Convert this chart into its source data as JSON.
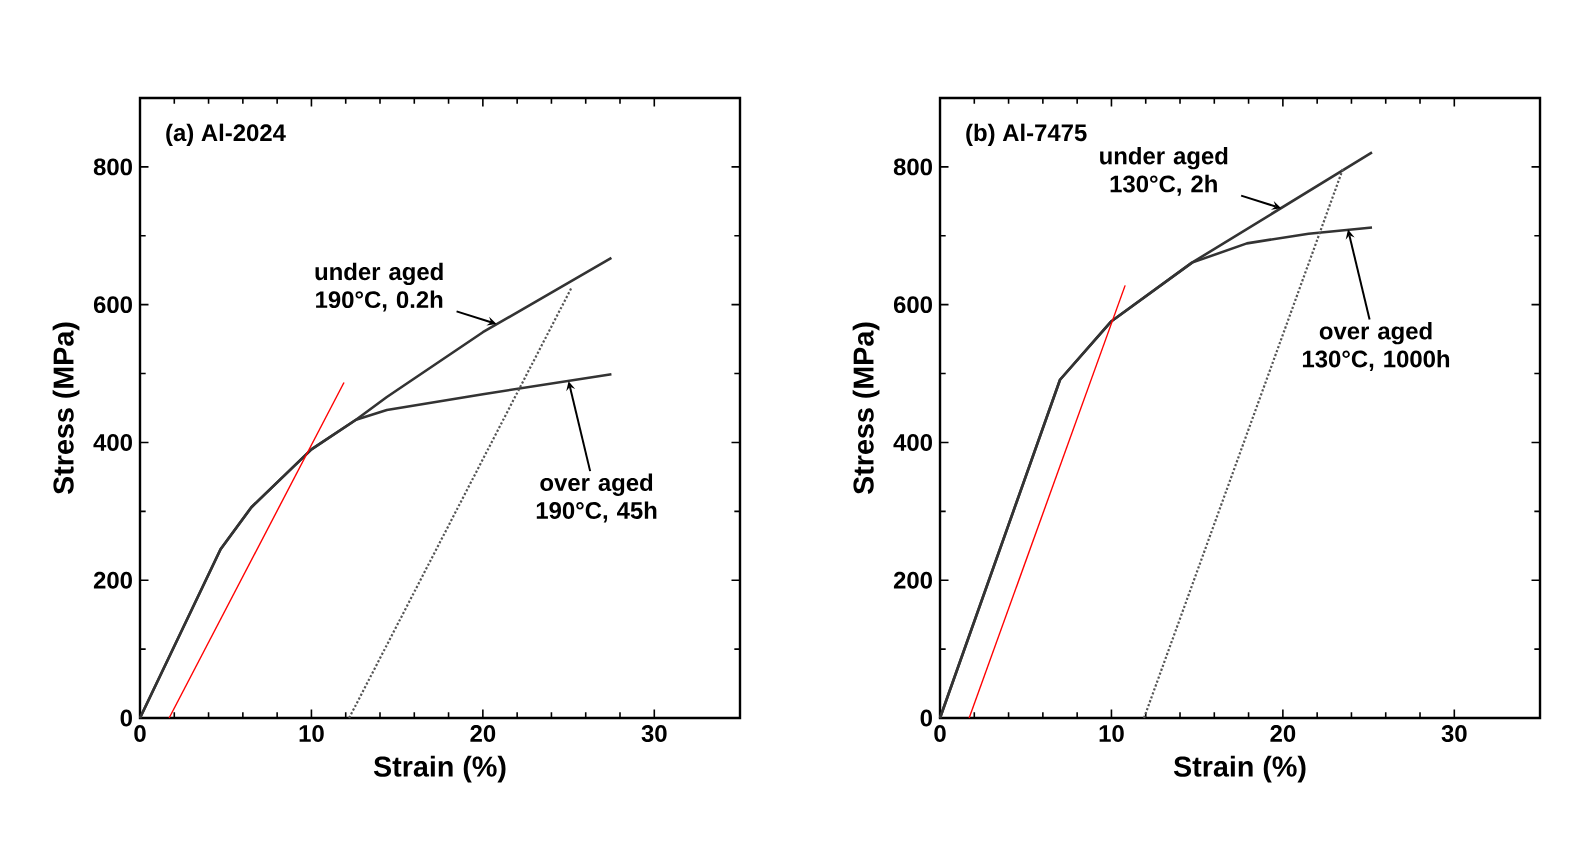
{
  "chart_data": [
    {
      "type": "line",
      "xlabel": "Strain (%)",
      "ylabel": "Stress (MPa)",
      "xlim": [
        0,
        35
      ],
      "ylim": [
        0,
        900
      ],
      "xticks": [
        0,
        10,
        20,
        30
      ],
      "yticks": [
        0,
        200,
        400,
        600,
        800
      ],
      "marker": "none",
      "series": [
        {
          "color": "#333333",
          "x": [
            0,
            4.7,
            6.5,
            10,
            12.6,
            14.4,
            20,
            27.5
          ],
          "values": [
            0,
            245,
            306,
            390,
            433,
            466,
            560,
            668
          ]
        },
        {
          "color": "#333333",
          "x": [
            0,
            4.7,
            6.5,
            10,
            12.6,
            14.4,
            20,
            27.5
          ],
          "values": [
            0,
            245,
            306,
            390,
            433,
            447,
            470,
            499
          ]
        },
        {
          "color": "#555555",
          "line_style": "dotted",
          "x": [
            12.2,
            25.2
          ],
          "values": [
            0,
            626
          ]
        },
        {
          "color": "#ff0000",
          "x": [
            1.7,
            11.9
          ],
          "values": [
            0,
            487
          ]
        }
      ],
      "annotations": [
        "(a) Al-2024",
        {
          "text": "under aged 190°C, 0.2h",
          "x": 20.8,
          "y": 572
        },
        {
          "text": "over aged 190°C, 45h",
          "x": 25,
          "y": 489
        }
      ]
    },
    {
      "type": "line",
      "xlabel": "Strain (%)",
      "ylabel": "Stress (MPa)",
      "xlim": [
        0,
        35
      ],
      "ylim": [
        0,
        900
      ],
      "xticks": [
        0,
        10,
        20,
        30
      ],
      "yticks": [
        0,
        200,
        400,
        600,
        800
      ],
      "marker": "none",
      "series": [
        {
          "color": "#333333",
          "x": [
            0,
            7.0,
            10,
            14.7,
            25.2
          ],
          "values": [
            0,
            491,
            576,
            661,
            821
          ]
        },
        {
          "color": "#333333",
          "x": [
            0,
            7.0,
            10,
            14.7,
            17.9,
            21.5,
            25.2
          ],
          "values": [
            0,
            491,
            576,
            661,
            689,
            703,
            712
          ]
        },
        {
          "color": "#555555",
          "line_style": "dotted",
          "x": [
            11.9,
            23.5
          ],
          "values": [
            0,
            797
          ]
        },
        {
          "color": "#ff0000",
          "x": [
            1.7,
            10.8
          ],
          "values": [
            0,
            628
          ]
        }
      ],
      "annotations": [
        "(b) Al-7475",
        {
          "text": "under aged 130°C, 2h",
          "x": 19.9,
          "y": 740
        },
        {
          "text": "over aged 130°C, 1000h",
          "x": 23.8,
          "y": 709
        }
      ]
    }
  ]
}
